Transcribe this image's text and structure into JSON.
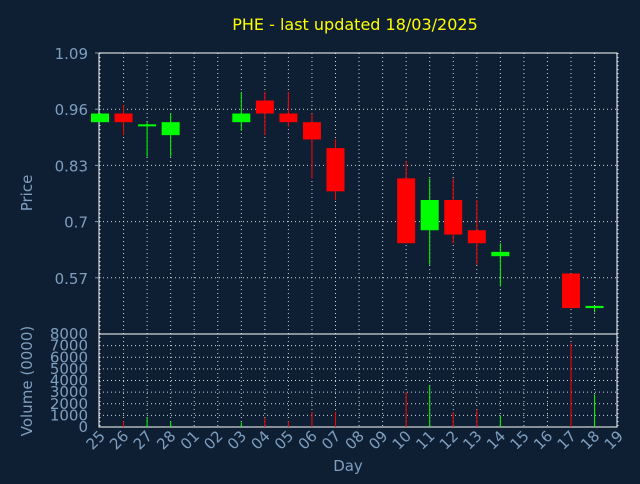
{
  "chart_data": {
    "type": "candlestick",
    "title": "PHE - last updated 18/03/2025",
    "xlabel": "Day",
    "ylabel_price": "Price",
    "ylabel_volume": "Volume (0000)",
    "x_ticks": [
      "25",
      "26",
      "27",
      "28",
      "01",
      "02",
      "03",
      "04",
      "05",
      "06",
      "07",
      "08",
      "09",
      "10",
      "11",
      "12",
      "13",
      "14",
      "15",
      "16",
      "17",
      "18",
      "19"
    ],
    "price_ticks": [
      "1.09",
      "0.96",
      "0.83",
      "0.7",
      "0.57"
    ],
    "price_tick_values": [
      1.09,
      0.96,
      0.83,
      0.7,
      0.57
    ],
    "price_range": [
      0.44,
      1.09
    ],
    "volume_ticks": [
      "8000",
      "7000",
      "6000",
      "5000",
      "4000",
      "3000",
      "2000",
      "1000",
      "0"
    ],
    "volume_tick_values": [
      8000,
      7000,
      6000,
      5000,
      4000,
      3000,
      2000,
      1000,
      0
    ],
    "volume_range": [
      0,
      8000
    ],
    "grid": true,
    "colors": {
      "background": "#0f1f33",
      "title": "#ffff00",
      "axis_text": "#7f9fbf",
      "grid": "#ffffff",
      "up": "#00ff00",
      "down": "#ff0000"
    },
    "candles": [
      {
        "day": "25",
        "open": 0.93,
        "close": 0.95,
        "high": 0.95,
        "low": 0.93,
        "volume": 0
      },
      {
        "day": "26",
        "open": 0.95,
        "close": 0.93,
        "high": 0.97,
        "low": 0.9,
        "volume": 500
      },
      {
        "day": "27",
        "open": 0.925,
        "close": 0.925,
        "high": 0.93,
        "low": 0.85,
        "volume": 800
      },
      {
        "day": "28",
        "open": 0.9,
        "close": 0.93,
        "high": 0.95,
        "low": 0.85,
        "volume": 500
      },
      {
        "day": "03",
        "open": 0.93,
        "close": 0.95,
        "high": 1.0,
        "low": 0.91,
        "volume": 400
      },
      {
        "day": "04",
        "open": 0.98,
        "close": 0.95,
        "high": 1.0,
        "low": 0.9,
        "volume": 800
      },
      {
        "day": "05",
        "open": 0.95,
        "close": 0.93,
        "high": 1.0,
        "low": 0.92,
        "volume": 500
      },
      {
        "day": "06",
        "open": 0.93,
        "close": 0.89,
        "high": 0.95,
        "low": 0.8,
        "volume": 1300
      },
      {
        "day": "07",
        "open": 0.87,
        "close": 0.77,
        "high": 0.89,
        "low": 0.75,
        "volume": 1300
      },
      {
        "day": "10",
        "open": 0.8,
        "close": 0.65,
        "high": 0.84,
        "low": 0.65,
        "volume": 3000
      },
      {
        "day": "11",
        "open": 0.68,
        "close": 0.75,
        "high": 0.8,
        "low": 0.6,
        "volume": 3600
      },
      {
        "day": "12",
        "open": 0.75,
        "close": 0.67,
        "high": 0.8,
        "low": 0.65,
        "volume": 1300
      },
      {
        "day": "13",
        "open": 0.68,
        "close": 0.65,
        "high": 0.75,
        "low": 0.6,
        "volume": 1500
      },
      {
        "day": "14",
        "open": 0.62,
        "close": 0.63,
        "high": 0.65,
        "low": 0.55,
        "volume": 1000
      },
      {
        "day": "17",
        "open": 0.58,
        "close": 0.5,
        "high": 0.58,
        "low": 0.5,
        "volume": 7200
      },
      {
        "day": "18",
        "open": 0.5,
        "close": 0.505,
        "high": 0.505,
        "low": 0.49,
        "volume": 2800
      }
    ]
  }
}
